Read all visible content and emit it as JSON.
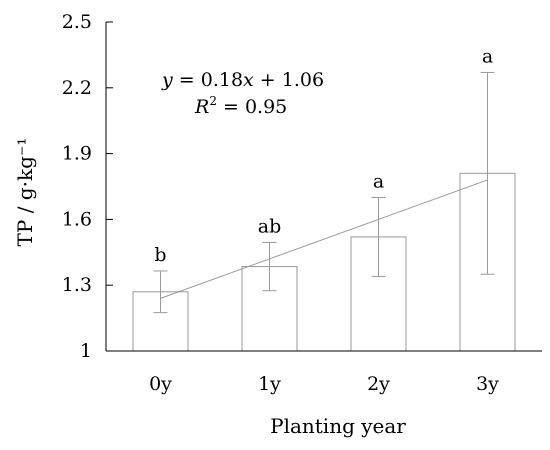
{
  "chart_data": {
    "type": "bar",
    "categories": [
      "0y",
      "1y",
      "2y",
      "3y"
    ],
    "values": [
      1.27,
      1.385,
      1.52,
      1.81
    ],
    "errors": [
      0.095,
      0.11,
      0.18,
      0.46
    ],
    "significance": [
      "b",
      "ab",
      "a",
      "a"
    ],
    "xlabel": "Planting year",
    "ylabel": "TP / g·kg⁻¹",
    "ylim": [
      1.0,
      2.5
    ],
    "yticks": [
      "1",
      "1.3",
      "1.6",
      "1.9",
      "2.2",
      "2.5"
    ],
    "trendline": {
      "slope": 0.18,
      "intercept": 1.06
    },
    "equation_parts": {
      "y": "y",
      "equals": " = 0.18",
      "x": "x",
      "rest": " + 1.06"
    },
    "r2_parts": {
      "r": "R",
      "exp": "2",
      "rest": " = 0.95"
    },
    "grid": false,
    "bar_fill": "#ffffff",
    "bar_stroke": "#999999",
    "axis_color": "#000000",
    "trend_color": "#999999",
    "error_color": "#999999"
  }
}
